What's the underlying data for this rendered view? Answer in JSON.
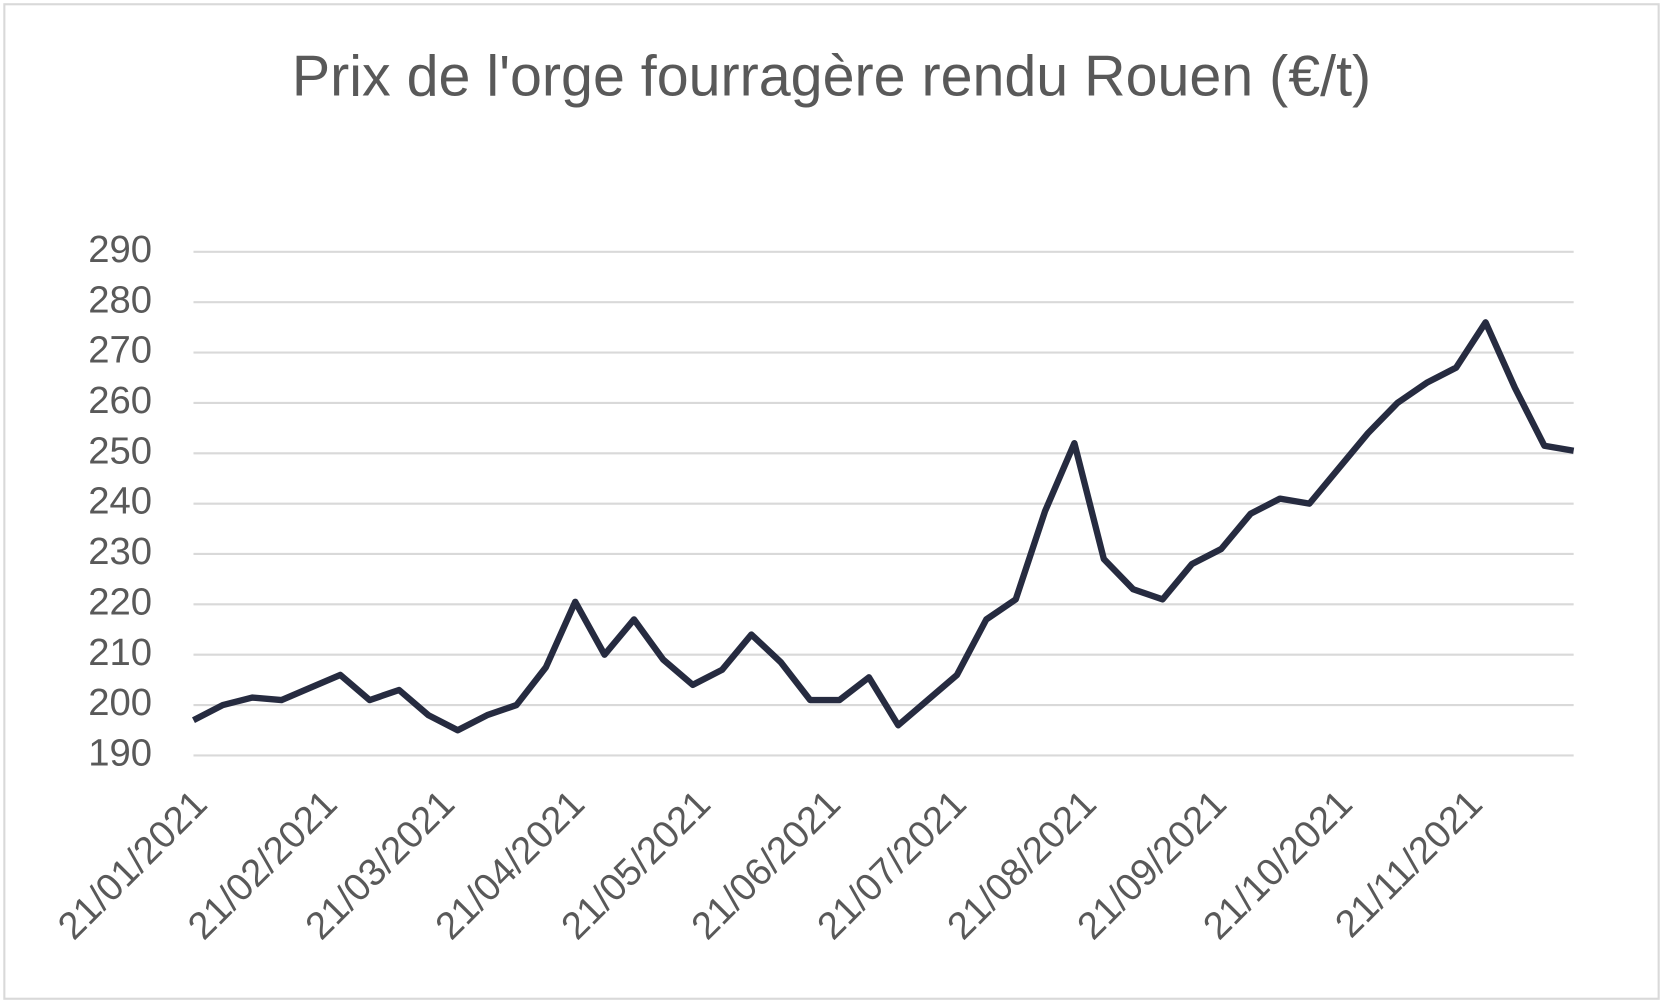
{
  "chart_data": {
    "type": "line",
    "title": "Prix de l'orge fourragère rendu Rouen (€/t)",
    "x": [
      "2021-01-21",
      "2021-01-28",
      "2021-02-04",
      "2021-02-11",
      "2021-02-18",
      "2021-02-25",
      "2021-03-04",
      "2021-03-11",
      "2021-03-18",
      "2021-03-25",
      "2021-04-01",
      "2021-04-08",
      "2021-04-15",
      "2021-04-22",
      "2021-04-29",
      "2021-05-06",
      "2021-05-13",
      "2021-05-20",
      "2021-05-27",
      "2021-06-03",
      "2021-06-10",
      "2021-06-17",
      "2021-06-24",
      "2021-07-01",
      "2021-07-08",
      "2021-07-15",
      "2021-07-22",
      "2021-07-29",
      "2021-08-05",
      "2021-08-12",
      "2021-08-19",
      "2021-08-26",
      "2021-09-02",
      "2021-09-09",
      "2021-09-16",
      "2021-09-23",
      "2021-09-30",
      "2021-10-07",
      "2021-10-14",
      "2021-10-21",
      "2021-10-28",
      "2021-11-04",
      "2021-11-11",
      "2021-11-18",
      "2021-11-25",
      "2021-12-02",
      "2021-12-09",
      "2021-12-16"
    ],
    "series": [
      {
        "color": "#262b40",
        "values": [
          197,
          200,
          201.5,
          201,
          203.5,
          206,
          201,
          203,
          198,
          195,
          198,
          200,
          207.5,
          220.5,
          210,
          217,
          209,
          204,
          207,
          214,
          208.5,
          201,
          201,
          205.5,
          196,
          201,
          206,
          217,
          221,
          238.5,
          252,
          229,
          223,
          221,
          228,
          231,
          238,
          241,
          240,
          247,
          254,
          260,
          264,
          267,
          276,
          263,
          251.5,
          250.5
        ]
      }
    ],
    "xlim": [
      "2021-01-21",
      "2021-12-16"
    ],
    "xticks": [
      {
        "value": "2021-01-21",
        "label": "21/01/2021"
      },
      {
        "value": "2021-02-21",
        "label": "21/02/2021"
      },
      {
        "value": "2021-03-21",
        "label": "21/03/2021"
      },
      {
        "value": "2021-04-21",
        "label": "21/04/2021"
      },
      {
        "value": "2021-05-21",
        "label": "21/05/2021"
      },
      {
        "value": "2021-06-21",
        "label": "21/06/2021"
      },
      {
        "value": "2021-07-21",
        "label": "21/07/2021"
      },
      {
        "value": "2021-08-21",
        "label": "21/08/2021"
      },
      {
        "value": "2021-09-21",
        "label": "21/09/2021"
      },
      {
        "value": "2021-10-21",
        "label": "21/10/2021"
      },
      {
        "value": "2021-11-21",
        "label": "21/11/2021"
      }
    ],
    "ylim": [
      190,
      290
    ],
    "yticks": [
      190,
      200,
      210,
      220,
      230,
      240,
      250,
      260,
      270,
      280,
      290
    ],
    "grid": true
  }
}
